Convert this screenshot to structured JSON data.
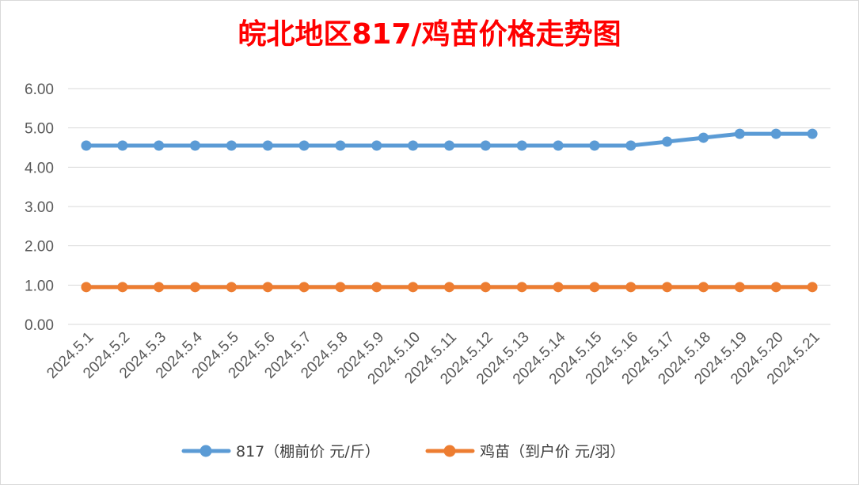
{
  "chart_data": {
    "type": "line",
    "title": "皖北地区817/鸡苗价格走势图",
    "categories": [
      "2024.5.1",
      "2024.5.2",
      "2024.5.3",
      "2024.5.4",
      "2024.5.5",
      "2024.5.6",
      "2024.5.7",
      "2024.5.8",
      "2024.5.9",
      "2024.5.10",
      "2024.5.11",
      "2024.5.12",
      "2024.5.13",
      "2024.5.14",
      "2024.5.15",
      "2024.5.16",
      "2024.5.17",
      "2024.5.18",
      "2024.5.19",
      "2024.5.20",
      "2024.5.21"
    ],
    "series": [
      {
        "name": "817（棚前价 元/斤）",
        "color": "#5b9bd5",
        "values": [
          4.55,
          4.55,
          4.55,
          4.55,
          4.55,
          4.55,
          4.55,
          4.55,
          4.55,
          4.55,
          4.55,
          4.55,
          4.55,
          4.55,
          4.55,
          4.55,
          4.65,
          4.75,
          4.85,
          4.85,
          4.85
        ]
      },
      {
        "name": "鸡苗（到户价 元/羽）",
        "color": "#ed7d31",
        "values": [
          0.95,
          0.95,
          0.95,
          0.95,
          0.95,
          0.95,
          0.95,
          0.95,
          0.95,
          0.95,
          0.95,
          0.95,
          0.95,
          0.95,
          0.95,
          0.95,
          0.95,
          0.95,
          0.95,
          0.95,
          0.95
        ]
      }
    ],
    "yticks": [
      "0.00",
      "1.00",
      "2.00",
      "3.00",
      "4.00",
      "5.00",
      "6.00"
    ],
    "ylim": [
      0,
      6
    ],
    "grid": true,
    "legend": "bottom"
  }
}
